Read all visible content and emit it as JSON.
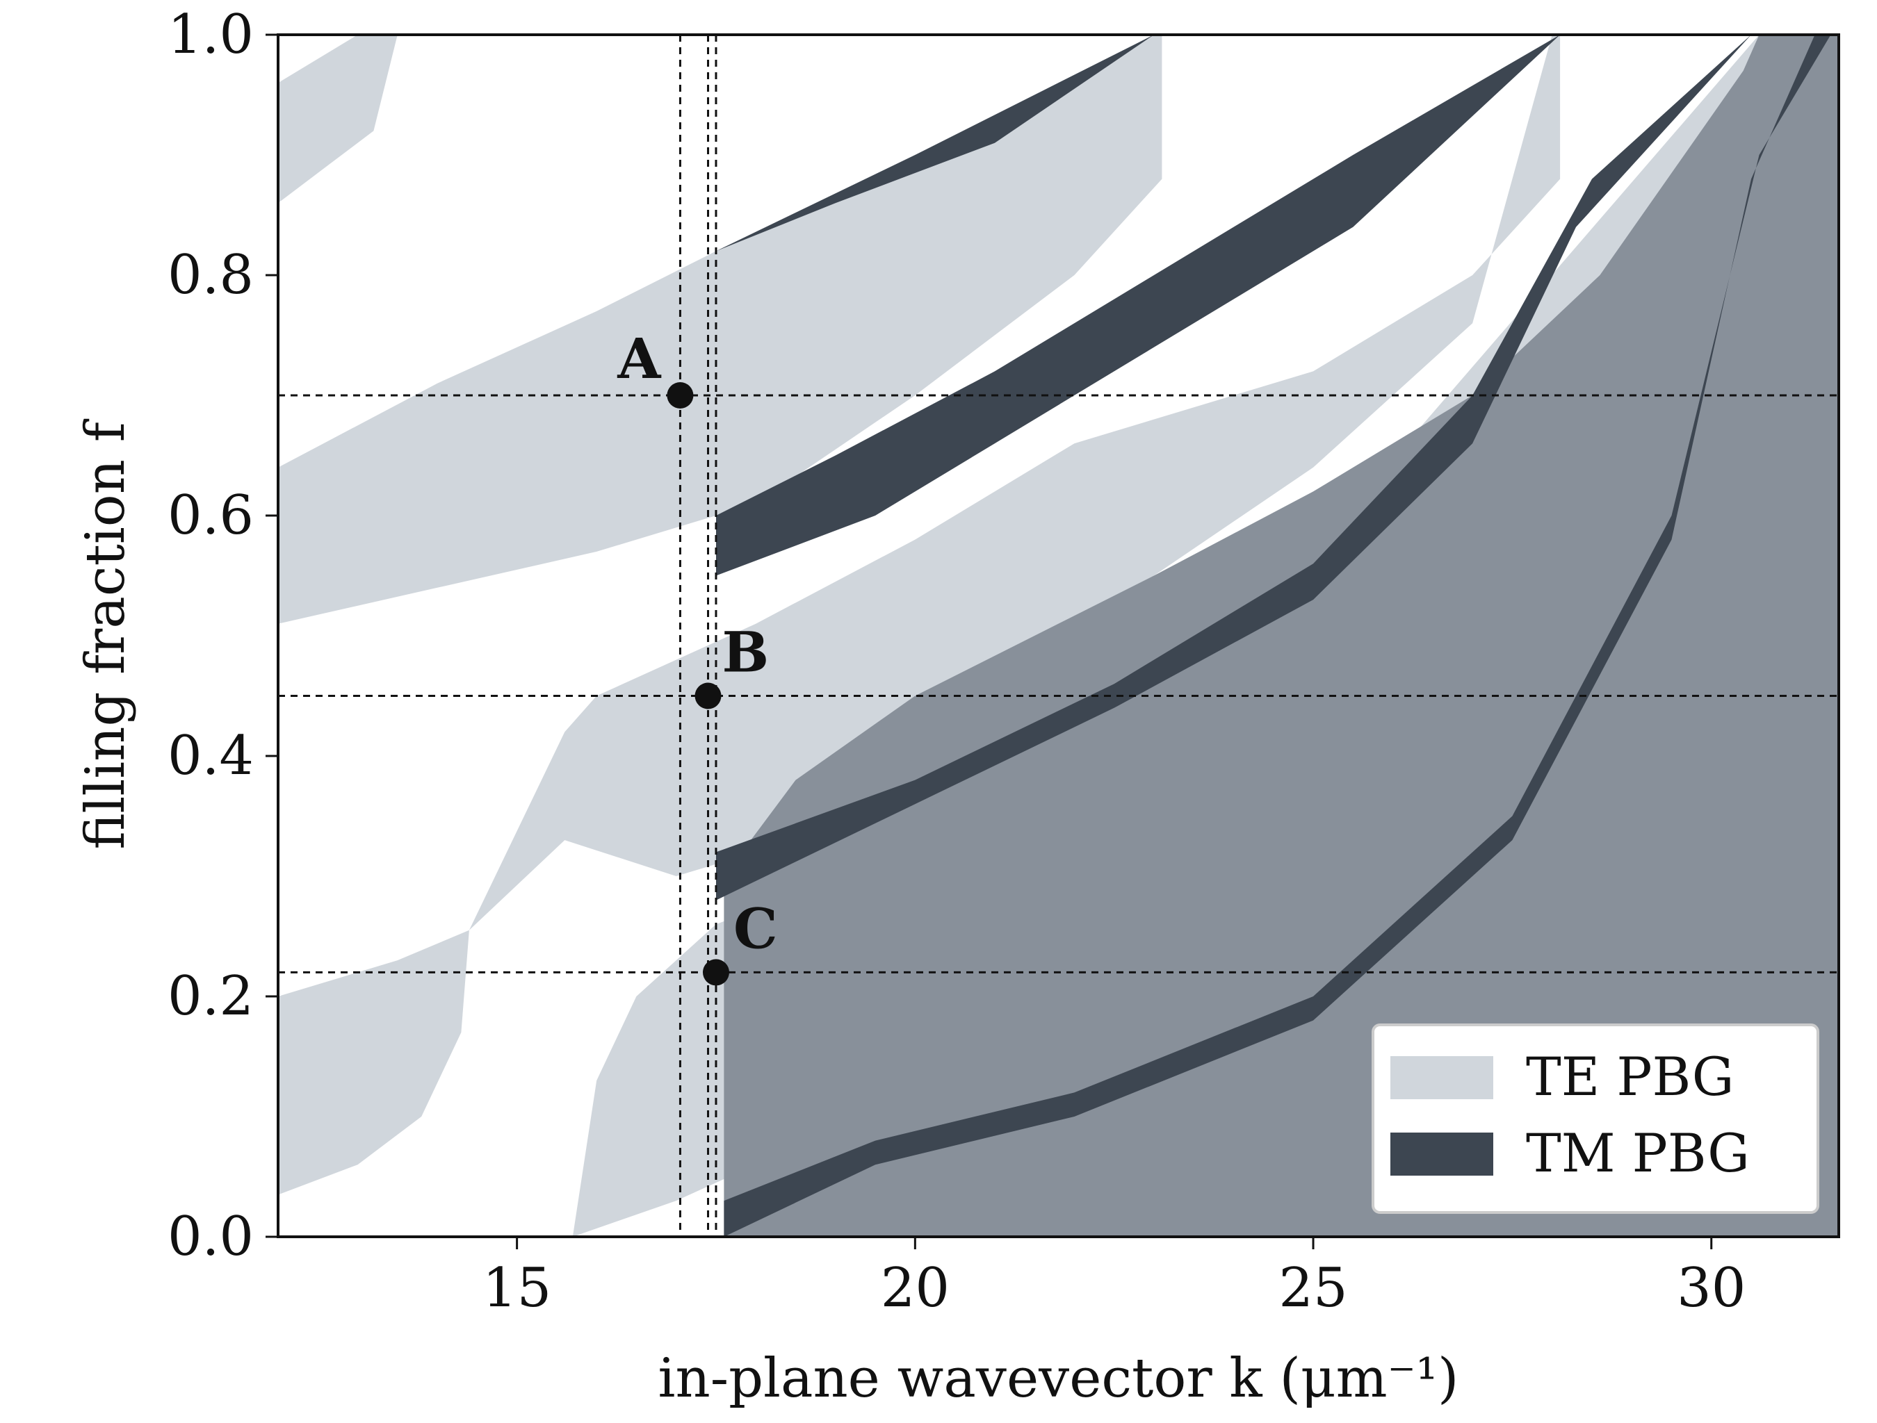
{
  "chart_data": {
    "type": "area",
    "title": "",
    "xlabel": "in-plane wavevector k (μm⁻¹)",
    "ylabel": "filling fraction f",
    "xlim": [
      12.0,
      31.6
    ],
    "ylim": [
      0.0,
      1.0
    ],
    "xticks": [
      15,
      20,
      25,
      30
    ],
    "xtick_labels": [
      "15",
      "20",
      "25",
      "30"
    ],
    "yticks": [
      0.0,
      0.2,
      0.4,
      0.6,
      0.8,
      1.0
    ],
    "ytick_labels": [
      "0.0",
      "0.2",
      "0.4",
      "0.6",
      "0.8",
      "1.0"
    ],
    "grid": false,
    "colors": {
      "te": "#d0d6dc",
      "tm": "#3d4651",
      "overlap": "#88909a",
      "axis": "#111111"
    },
    "series": [
      {
        "name": "TE PBG",
        "bands": [
          {
            "upper": [
              [
                12.0,
                0.86
              ],
              [
                12.6,
                0.89
              ],
              [
                13.2,
                0.92
              ],
              [
                13.5,
                1.0
              ]
            ],
            "lower": [
              [
                12.0,
                0.96
              ],
              [
                13.0,
                1.0
              ]
            ]
          },
          {
            "upper": [
              [
                12.0,
                0.64
              ],
              [
                14.0,
                0.71
              ],
              [
                16.0,
                0.77
              ],
              [
                17.5,
                0.82
              ],
              [
                20.0,
                0.9
              ],
              [
                22.5,
                0.98
              ],
              [
                23.0,
                1.0
              ]
            ],
            "lower": [
              [
                12.0,
                0.51
              ],
              [
                14.0,
                0.54
              ],
              [
                16.0,
                0.57
              ],
              [
                18.0,
                0.61
              ],
              [
                20.0,
                0.7
              ],
              [
                22.0,
                0.8
              ],
              [
                23.1,
                0.88
              ],
              [
                23.1,
                1.0
              ]
            ]
          },
          {
            "upper": [
              [
                14.4,
                0.255
              ],
              [
                15.6,
                0.42
              ],
              [
                16.0,
                0.45
              ],
              [
                18.0,
                0.51
              ],
              [
                20.0,
                0.58
              ],
              [
                22.0,
                0.66
              ],
              [
                25.0,
                0.72
              ],
              [
                27.0,
                0.8
              ],
              [
                28.1,
                0.88
              ],
              [
                28.1,
                1.0
              ]
            ],
            "lower": [
              [
                14.4,
                0.255
              ],
              [
                15.6,
                0.33
              ],
              [
                17.0,
                0.3
              ],
              [
                18.5,
                0.33
              ],
              [
                20.0,
                0.4
              ],
              [
                23.0,
                0.55
              ],
              [
                25.0,
                0.64
              ],
              [
                27.0,
                0.76
              ],
              [
                28.0,
                1.0
              ]
            ]
          },
          {
            "upper": [
              [
                12.0,
                0.2
              ],
              [
                13.5,
                0.23
              ],
              [
                14.4,
                0.255
              ]
            ],
            "lower": [
              [
                12.0,
                0.035
              ],
              [
                13.0,
                0.06
              ],
              [
                13.8,
                0.1
              ],
              [
                14.3,
                0.17
              ],
              [
                14.4,
                0.255
              ]
            ]
          },
          {
            "upper": [
              [
                15.7,
                0.0
              ],
              [
                16.0,
                0.13
              ],
              [
                16.5,
                0.2
              ],
              [
                17.5,
                0.26
              ],
              [
                19.5,
                0.31
              ],
              [
                22.0,
                0.34
              ]
            ],
            "lower": [
              [
                15.7,
                0.0
              ],
              [
                17.0,
                0.03
              ],
              [
                18.0,
                0.06
              ],
              [
                20.0,
                0.14
              ],
              [
                22.0,
                0.2
              ],
              [
                26.0,
                0.37
              ],
              [
                30.4,
                0.97
              ],
              [
                30.6,
                1.0
              ]
            ]
          }
        ]
      },
      {
        "name": "TM PBG",
        "bands": [
          {
            "upper": [
              [
                17.5,
                0.82
              ],
              [
                20.0,
                0.9
              ],
              [
                23.0,
                1.0
              ]
            ],
            "lower": [
              [
                17.5,
                0.82
              ],
              [
                19.0,
                0.86
              ],
              [
                21.0,
                0.91
              ],
              [
                23.0,
                1.0
              ]
            ]
          },
          {
            "upper": [
              [
                17.5,
                0.6
              ],
              [
                19.0,
                0.65
              ],
              [
                21.0,
                0.72
              ],
              [
                23.0,
                0.8
              ],
              [
                25.5,
                0.9
              ],
              [
                28.1,
                1.0
              ]
            ],
            "lower": [
              [
                17.5,
                0.55
              ],
              [
                19.5,
                0.6
              ],
              [
                21.0,
                0.66
              ],
              [
                23.0,
                0.74
              ],
              [
                25.5,
                0.84
              ],
              [
                28.1,
                1.0
              ]
            ]
          },
          {
            "upper": [
              [
                17.5,
                0.32
              ],
              [
                20.0,
                0.38
              ],
              [
                22.5,
                0.46
              ],
              [
                25.0,
                0.56
              ],
              [
                27.0,
                0.7
              ],
              [
                28.5,
                0.88
              ],
              [
                30.5,
                1.0
              ]
            ],
            "lower": [
              [
                17.5,
                0.28
              ],
              [
                20.0,
                0.36
              ],
              [
                22.5,
                0.44
              ],
              [
                25.0,
                0.53
              ],
              [
                27.0,
                0.66
              ],
              [
                28.3,
                0.84
              ],
              [
                30.5,
                1.0
              ]
            ]
          },
          {
            "upper": [
              [
                17.6,
                0.03
              ],
              [
                19.5,
                0.08
              ],
              [
                22.0,
                0.12
              ],
              [
                25.0,
                0.2
              ],
              [
                27.5,
                0.35
              ],
              [
                29.5,
                0.6
              ],
              [
                30.6,
                0.9
              ],
              [
                31.5,
                1.0
              ]
            ],
            "lower": [
              [
                17.6,
                0.0
              ],
              [
                19.5,
                0.06
              ],
              [
                22.0,
                0.1
              ],
              [
                25.0,
                0.18
              ],
              [
                27.5,
                0.33
              ],
              [
                29.5,
                0.58
              ],
              [
                30.5,
                0.88
              ],
              [
                31.3,
                1.0
              ]
            ]
          }
        ]
      }
    ],
    "reference_lines": {
      "horizontal": [
        0.7,
        0.45,
        0.22
      ],
      "vertical": [
        17.05,
        17.4,
        17.5
      ]
    },
    "points": [
      {
        "label": "A",
        "x": 17.05,
        "y": 0.7
      },
      {
        "label": "B",
        "x": 17.4,
        "y": 0.45
      },
      {
        "label": "C",
        "x": 17.5,
        "y": 0.22
      }
    ],
    "legend": {
      "placement": "bottom-right",
      "entries": [
        {
          "label": "TE PBG",
          "color": "#d0d6dc"
        },
        {
          "label": "TM PBG",
          "color": "#3d4651"
        }
      ]
    }
  }
}
